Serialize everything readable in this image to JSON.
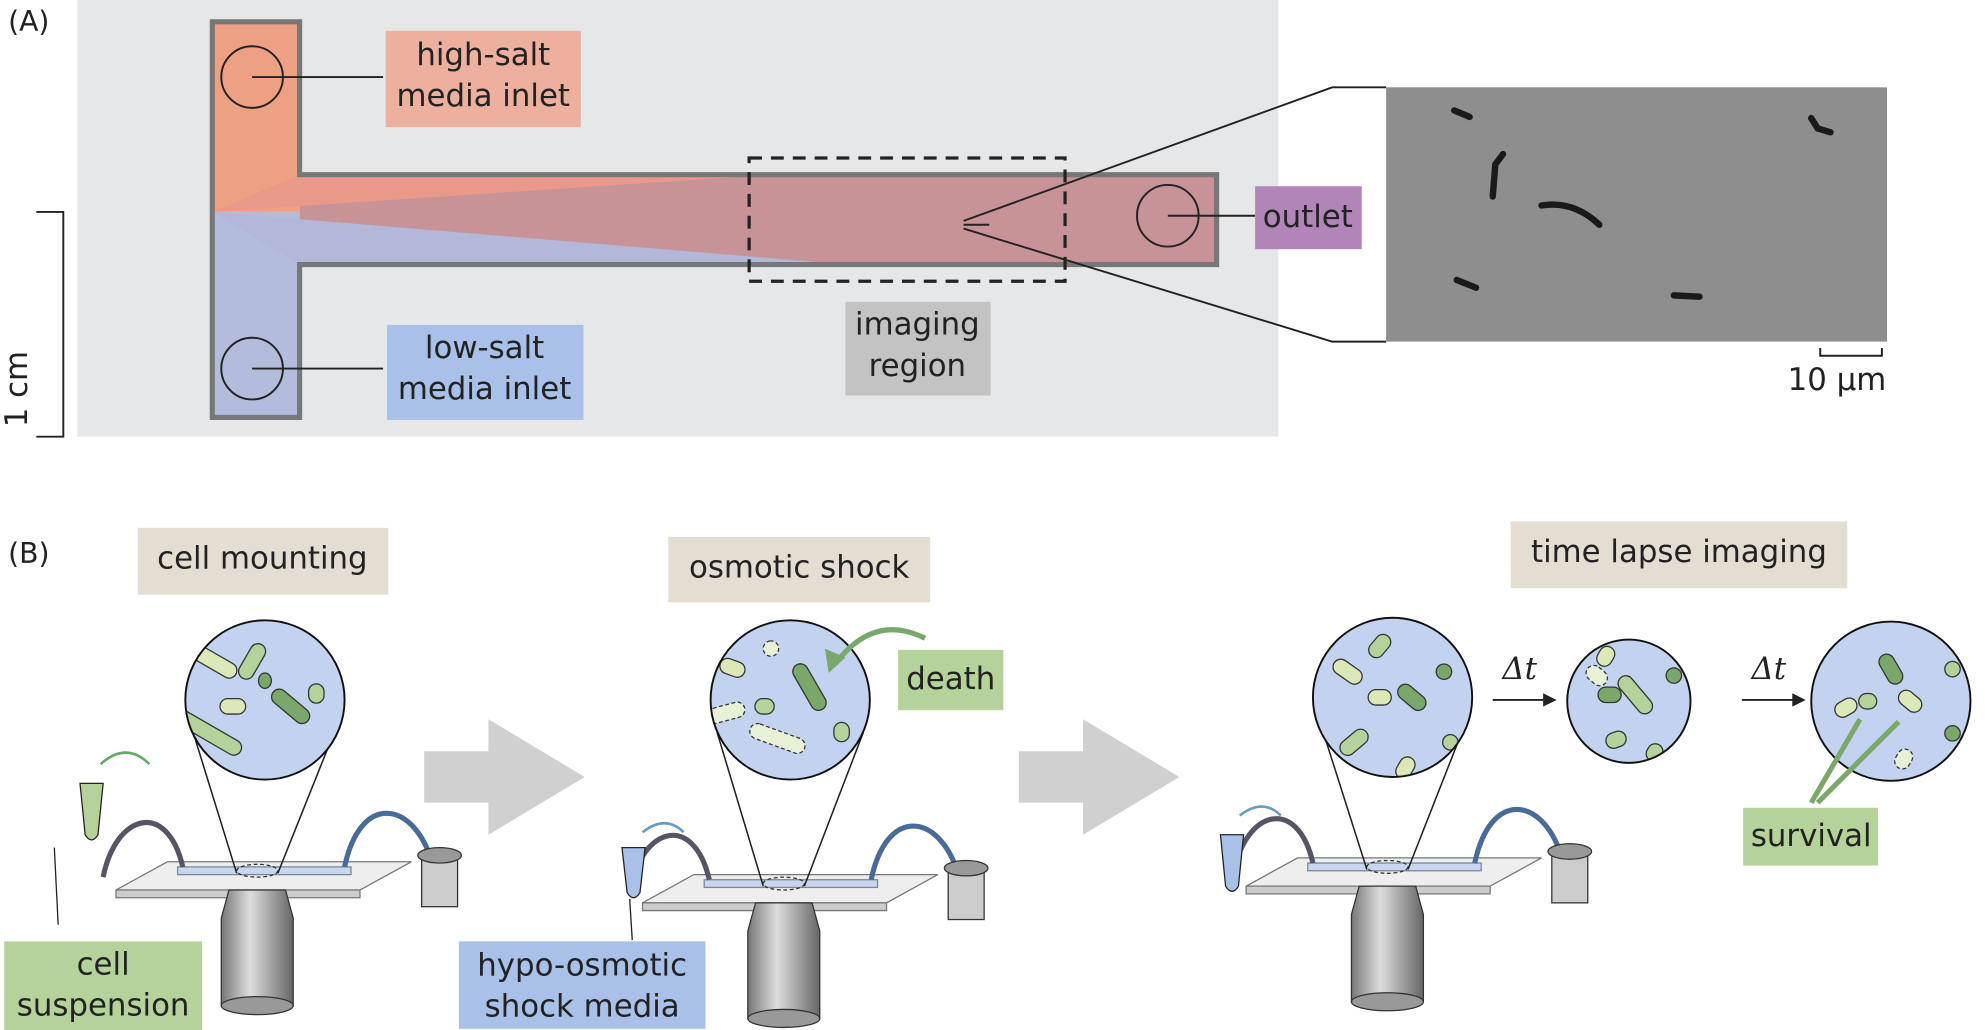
{
  "panel_a": {
    "label": "(A)",
    "inlets": [
      {
        "label": [
          "high-salt",
          "media inlet"
        ]
      },
      {
        "label": [
          "low-salt",
          "media inlet"
        ]
      }
    ],
    "outlet": "outlet",
    "imaging_region": [
      "imaging",
      "region"
    ],
    "device_scale_bar": "1 cm",
    "micrograph_scale_bar": "10 μm"
  },
  "panel_b": {
    "label": "(B)",
    "steps": [
      {
        "title": "cell mounting",
        "callout": [
          "cell",
          "suspension"
        ]
      },
      {
        "title": "osmotic shock",
        "callout": [
          "hypo-osmotic",
          "shock media"
        ],
        "zoom_label": "death"
      },
      {
        "title": "time lapse imaging",
        "intervals": [
          "Δt",
          "Δt"
        ],
        "zoom_label": "survival"
      }
    ]
  }
}
